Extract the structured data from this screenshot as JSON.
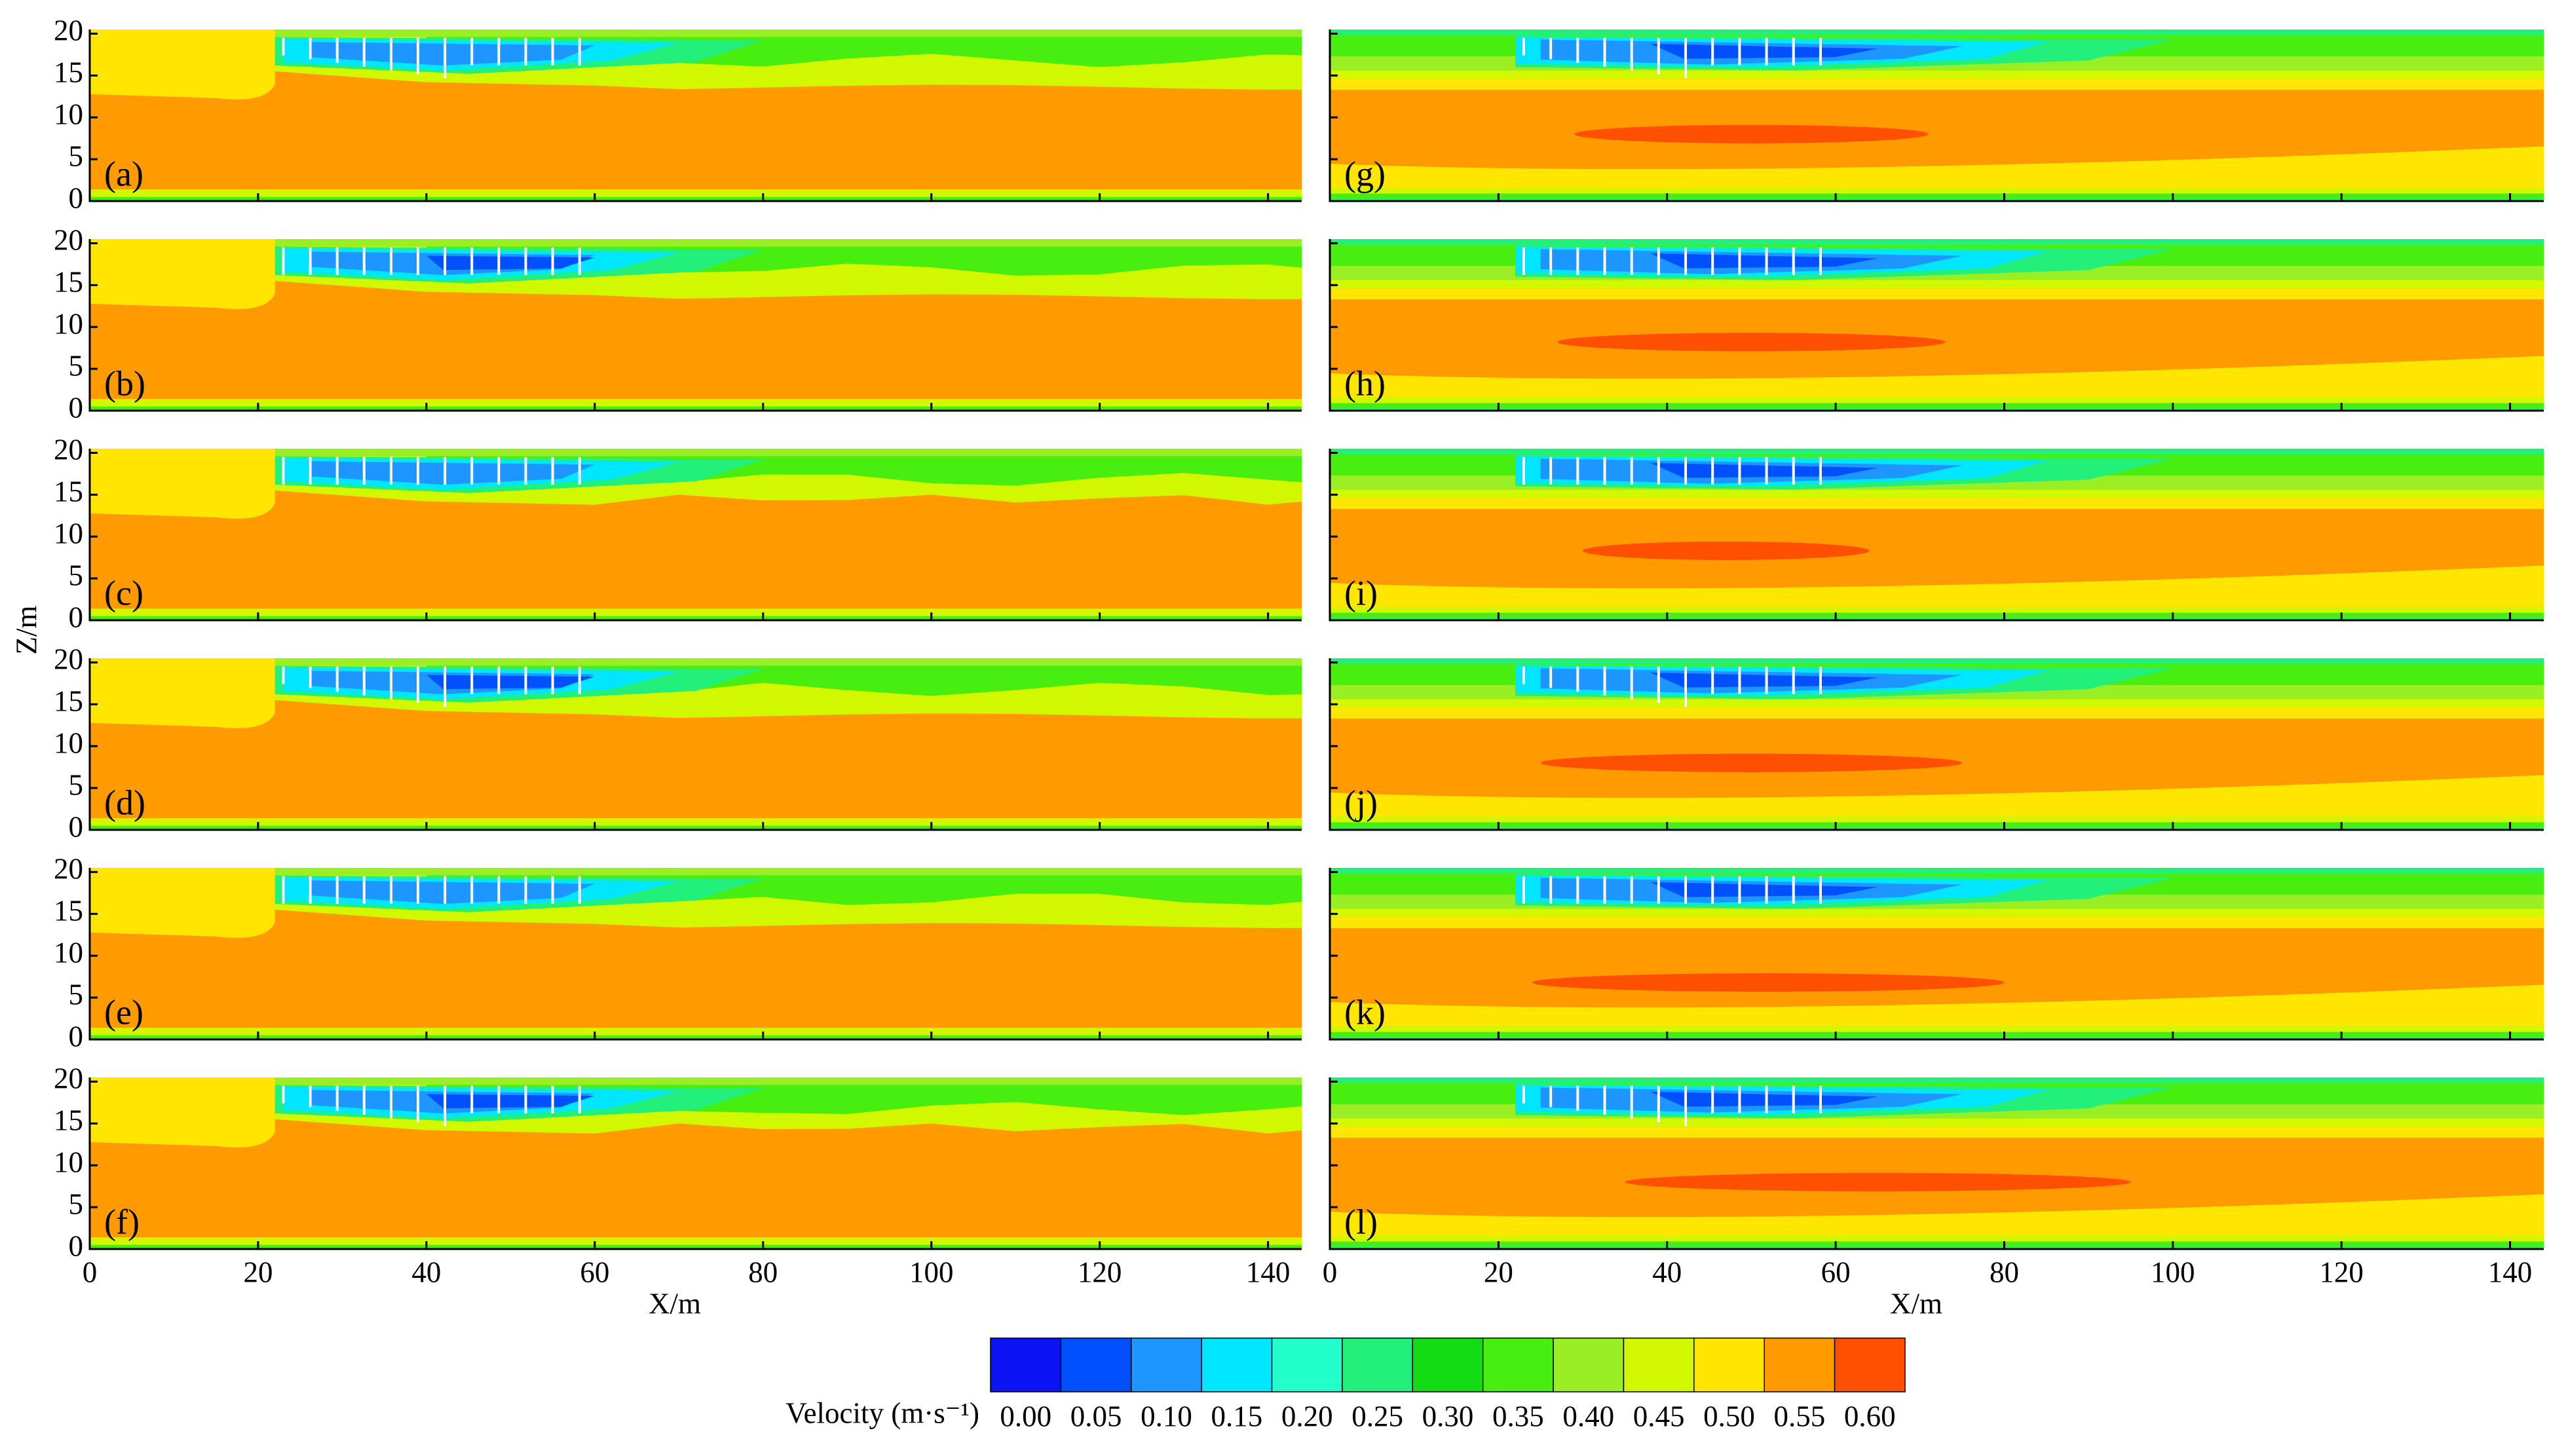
{
  "figure": {
    "y_label": "Z/m",
    "x_label": "X/m",
    "xlim": [
      0,
      144
    ],
    "ylim": [
      0,
      20.5
    ],
    "xticks": [
      0,
      20,
      40,
      60,
      80,
      100,
      120,
      140
    ],
    "yticks": [
      0,
      5,
      10,
      15,
      20
    ],
    "panels": [
      {
        "label": "(a)"
      },
      {
        "label": "(b)"
      },
      {
        "label": "(c)"
      },
      {
        "label": "(d)"
      },
      {
        "label": "(e)"
      },
      {
        "label": "(f)"
      },
      {
        "label": "(g)"
      },
      {
        "label": "(h)"
      },
      {
        "label": "(i)"
      },
      {
        "label": "(j)"
      },
      {
        "label": "(k)"
      },
      {
        "label": "(l)"
      }
    ],
    "colorbar": {
      "label": "Velocity (m·s⁻¹)",
      "ticks": [
        {
          "value": 0,
          "label": "0.00"
        },
        {
          "value": 0.05,
          "label": "0.05"
        },
        {
          "value": 0.1,
          "label": "0.10"
        },
        {
          "value": 0.15,
          "label": "0.15"
        },
        {
          "value": 0.2,
          "label": "0.20"
        },
        {
          "value": 0.25,
          "label": "0.25"
        },
        {
          "value": 0.3,
          "label": "0.30"
        },
        {
          "value": 0.35,
          "label": "0.35"
        },
        {
          "value": 0.4,
          "label": "0.40"
        },
        {
          "value": 0.45,
          "label": "0.45"
        },
        {
          "value": 0.5,
          "label": "0.50"
        },
        {
          "value": 0.55,
          "label": "0.55"
        },
        {
          "value": 0.6,
          "label": "0.60"
        }
      ],
      "colors": [
        "#0a14f5",
        "#0050ff",
        "#1e96ff",
        "#00e6ff",
        "#22ffcc",
        "#22f07a",
        "#14dc14",
        "#48ee10",
        "#9aee24",
        "#d2f800",
        "#ffe600",
        "#ff9a00",
        "#ff5000"
      ]
    }
  }
}
